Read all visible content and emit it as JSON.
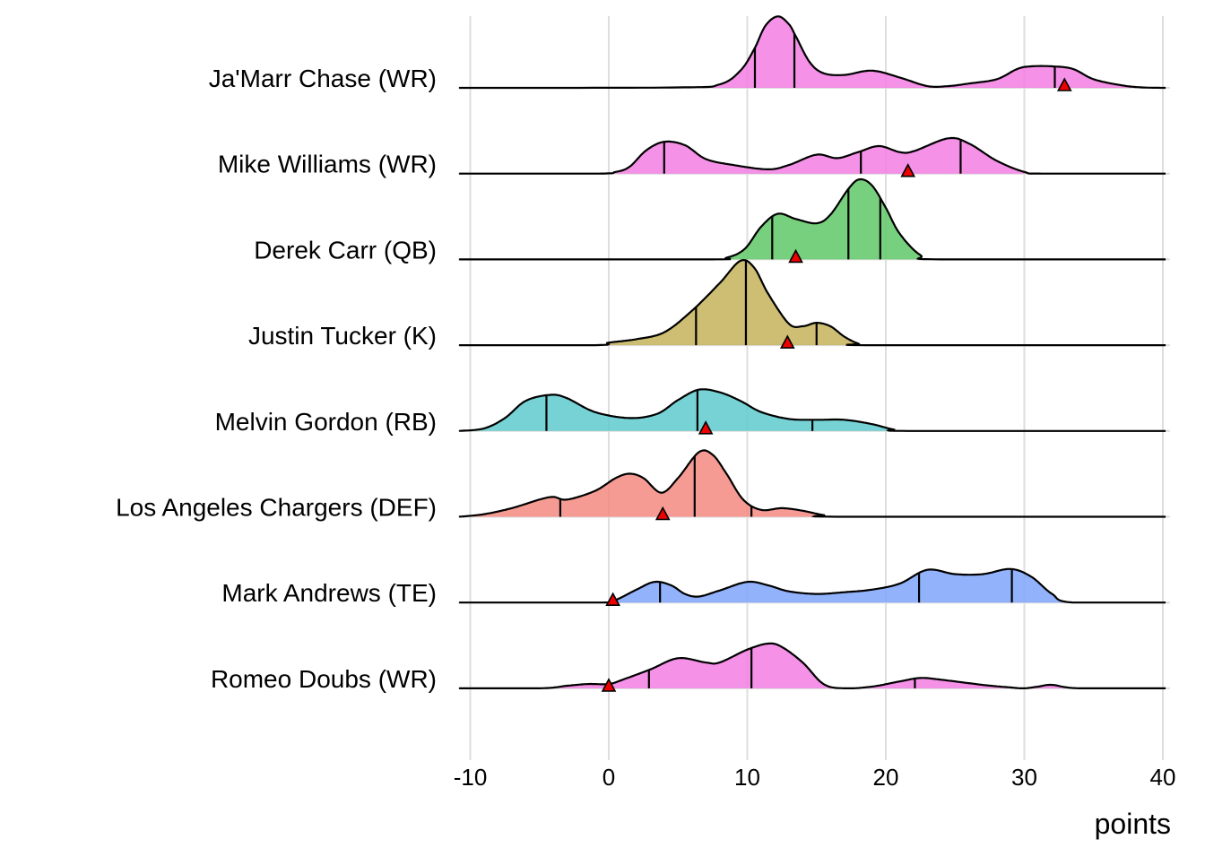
{
  "chart_data": {
    "type": "ridgeline",
    "xlabel": "points",
    "xlim": [
      -10.8,
      40.2
    ],
    "xticks": [
      -10,
      0,
      10,
      20,
      30,
      40
    ],
    "xtick_labels": [
      "-10",
      "0",
      "10",
      "20",
      "30",
      "40"
    ],
    "grid": "vertical",
    "series": [
      {
        "name": "Ja'Marr Chase (WR)",
        "color": "#F37EE3",
        "quantiles": [
          10.55,
          13.4,
          32.2
        ],
        "actual": 32.9,
        "density": [
          [
            -10.8,
            0
          ],
          [
            5,
            0.005
          ],
          [
            8,
            0.04
          ],
          [
            9.5,
            0.2
          ],
          [
            10.5,
            0.45
          ],
          [
            11.3,
            0.72
          ],
          [
            12.2,
            0.83
          ],
          [
            13,
            0.74
          ],
          [
            13.5,
            0.6
          ],
          [
            14.5,
            0.3
          ],
          [
            15.5,
            0.17
          ],
          [
            17,
            0.15
          ],
          [
            19,
            0.2
          ],
          [
            21,
            0.12
          ],
          [
            23,
            0.02
          ],
          [
            24.5,
            0.02
          ],
          [
            26,
            0.05
          ],
          [
            28,
            0.1
          ],
          [
            29.5,
            0.22
          ],
          [
            30.5,
            0.25
          ],
          [
            32,
            0.25
          ],
          [
            33.5,
            0.22
          ],
          [
            35,
            0.1
          ],
          [
            37,
            0.03
          ],
          [
            38.5,
            0.005
          ],
          [
            40.2,
            0
          ]
        ]
      },
      {
        "name": "Mike Williams (WR)",
        "color": "#F37EE3",
        "quantiles": [
          4.0,
          18.2,
          25.4
        ],
        "actual": 21.6,
        "density": [
          [
            -10.8,
            0
          ],
          [
            -1,
            0
          ],
          [
            0.5,
            0.02
          ],
          [
            1.5,
            0.08
          ],
          [
            2.7,
            0.27
          ],
          [
            4,
            0.37
          ],
          [
            5.5,
            0.33
          ],
          [
            7,
            0.17
          ],
          [
            9,
            0.1
          ],
          [
            11.5,
            0.05
          ],
          [
            13,
            0.1
          ],
          [
            15,
            0.22
          ],
          [
            16.5,
            0.18
          ],
          [
            18,
            0.25
          ],
          [
            19.5,
            0.32
          ],
          [
            21,
            0.25
          ],
          [
            22,
            0.26
          ],
          [
            24.5,
            0.41
          ],
          [
            26,
            0.35
          ],
          [
            28,
            0.15
          ],
          [
            30,
            0.02
          ],
          [
            31.5,
            0
          ],
          [
            40.2,
            0
          ]
        ]
      },
      {
        "name": "Derek Carr (QB)",
        "color": "#5FC866",
        "quantiles": [
          11.8,
          17.3,
          19.6
        ],
        "actual": 13.5,
        "density": [
          [
            -10.8,
            0
          ],
          [
            7,
            0
          ],
          [
            8.5,
            0.02
          ],
          [
            9.8,
            0.12
          ],
          [
            11,
            0.38
          ],
          [
            12.2,
            0.53
          ],
          [
            13.5,
            0.47
          ],
          [
            15,
            0.42
          ],
          [
            16,
            0.52
          ],
          [
            17.3,
            0.82
          ],
          [
            18.1,
            0.93
          ],
          [
            19,
            0.86
          ],
          [
            20,
            0.6
          ],
          [
            21,
            0.3
          ],
          [
            22.5,
            0.05
          ],
          [
            24,
            0
          ],
          [
            40.2,
            0
          ]
        ]
      },
      {
        "name": "Justin Tucker (K)",
        "color": "#C4B35A",
        "quantiles": [
          6.3,
          9.9,
          15.0
        ],
        "actual": 12.9,
        "density": [
          [
            -10.8,
            0
          ],
          [
            -1,
            0
          ],
          [
            0,
            0.03
          ],
          [
            2,
            0.07
          ],
          [
            4,
            0.15
          ],
          [
            6,
            0.4
          ],
          [
            8,
            0.72
          ],
          [
            9.5,
            0.98
          ],
          [
            10.5,
            0.9
          ],
          [
            11.5,
            0.6
          ],
          [
            13,
            0.25
          ],
          [
            14,
            0.22
          ],
          [
            15,
            0.26
          ],
          [
            16,
            0.22
          ],
          [
            17,
            0.1
          ],
          [
            18,
            0.02
          ],
          [
            19,
            0
          ],
          [
            40.2,
            0
          ]
        ]
      },
      {
        "name": "Melvin Gordon (RB)",
        "color": "#5ECACC",
        "quantiles": [
          -4.5,
          6.4,
          14.7
        ],
        "actual": 7.0,
        "density": [
          [
            -10.8,
            0
          ],
          [
            -9,
            0.03
          ],
          [
            -7.5,
            0.15
          ],
          [
            -6,
            0.35
          ],
          [
            -4.2,
            0.42
          ],
          [
            -3,
            0.38
          ],
          [
            -1,
            0.22
          ],
          [
            1.5,
            0.15
          ],
          [
            3.5,
            0.2
          ],
          [
            5,
            0.36
          ],
          [
            6.5,
            0.48
          ],
          [
            8,
            0.45
          ],
          [
            9.5,
            0.35
          ],
          [
            11,
            0.22
          ],
          [
            13,
            0.14
          ],
          [
            15,
            0.13
          ],
          [
            17,
            0.13
          ],
          [
            19,
            0.08
          ],
          [
            20.5,
            0.02
          ],
          [
            22,
            0
          ],
          [
            40.2,
            0
          ]
        ]
      },
      {
        "name": "Los Angeles Chargers (DEF)",
        "color": "#F58A80",
        "quantiles": [
          -3.5,
          6.2,
          10.3
        ],
        "actual": 3.9,
        "density": [
          [
            -10.8,
            0
          ],
          [
            -9,
            0.03
          ],
          [
            -7,
            0.1
          ],
          [
            -5,
            0.2
          ],
          [
            -4,
            0.23
          ],
          [
            -3,
            0.2
          ],
          [
            -1,
            0.3
          ],
          [
            0.5,
            0.45
          ],
          [
            1.5,
            0.5
          ],
          [
            2.5,
            0.45
          ],
          [
            3.8,
            0.28
          ],
          [
            5,
            0.45
          ],
          [
            6.5,
            0.75
          ],
          [
            7.5,
            0.72
          ],
          [
            8.5,
            0.5
          ],
          [
            9.7,
            0.2
          ],
          [
            11,
            0.08
          ],
          [
            12.5,
            0.1
          ],
          [
            14,
            0.07
          ],
          [
            15.5,
            0.02
          ],
          [
            17,
            0
          ],
          [
            40.2,
            0
          ]
        ]
      },
      {
        "name": "Mark Andrews (TE)",
        "color": "#7FA6FC",
        "quantiles": [
          3.7,
          22.4,
          29.1
        ],
        "actual": 0.3,
        "density": [
          [
            -10.8,
            0
          ],
          [
            -0.5,
            0
          ],
          [
            0.5,
            0.03
          ],
          [
            2,
            0.15
          ],
          [
            3.3,
            0.24
          ],
          [
            4.5,
            0.2
          ],
          [
            5.5,
            0.1
          ],
          [
            6.5,
            0.07
          ],
          [
            8,
            0.14
          ],
          [
            10,
            0.24
          ],
          [
            11.5,
            0.2
          ],
          [
            13,
            0.13
          ],
          [
            15,
            0.1
          ],
          [
            17,
            0.12
          ],
          [
            19,
            0.15
          ],
          [
            21,
            0.22
          ],
          [
            23,
            0.38
          ],
          [
            25,
            0.33
          ],
          [
            27,
            0.33
          ],
          [
            29,
            0.39
          ],
          [
            30.5,
            0.3
          ],
          [
            32,
            0.1
          ],
          [
            33.5,
            0
          ],
          [
            40.2,
            0
          ]
        ]
      },
      {
        "name": "Romeo Doubs (WR)",
        "color": "#F37EE3",
        "quantiles": [
          2.9,
          10.3,
          22.1
        ],
        "actual": 0.0,
        "density": [
          [
            -10.8,
            0
          ],
          [
            -5,
            0
          ],
          [
            -3,
            0.03
          ],
          [
            -1.5,
            0.05
          ],
          [
            0,
            0.05
          ],
          [
            1,
            0.1
          ],
          [
            3,
            0.22
          ],
          [
            5,
            0.35
          ],
          [
            7,
            0.3
          ],
          [
            8,
            0.3
          ],
          [
            10,
            0.45
          ],
          [
            11.5,
            0.52
          ],
          [
            12.5,
            0.48
          ],
          [
            14,
            0.3
          ],
          [
            15.5,
            0.05
          ],
          [
            17,
            0
          ],
          [
            19,
            0.02
          ],
          [
            21,
            0.08
          ],
          [
            22.5,
            0.12
          ],
          [
            24,
            0.1
          ],
          [
            27,
            0.04
          ],
          [
            29,
            0.01
          ],
          [
            30,
            0
          ],
          [
            31,
            0.02
          ],
          [
            32,
            0.04
          ],
          [
            34,
            0
          ],
          [
            40.2,
            0
          ]
        ]
      }
    ]
  }
}
